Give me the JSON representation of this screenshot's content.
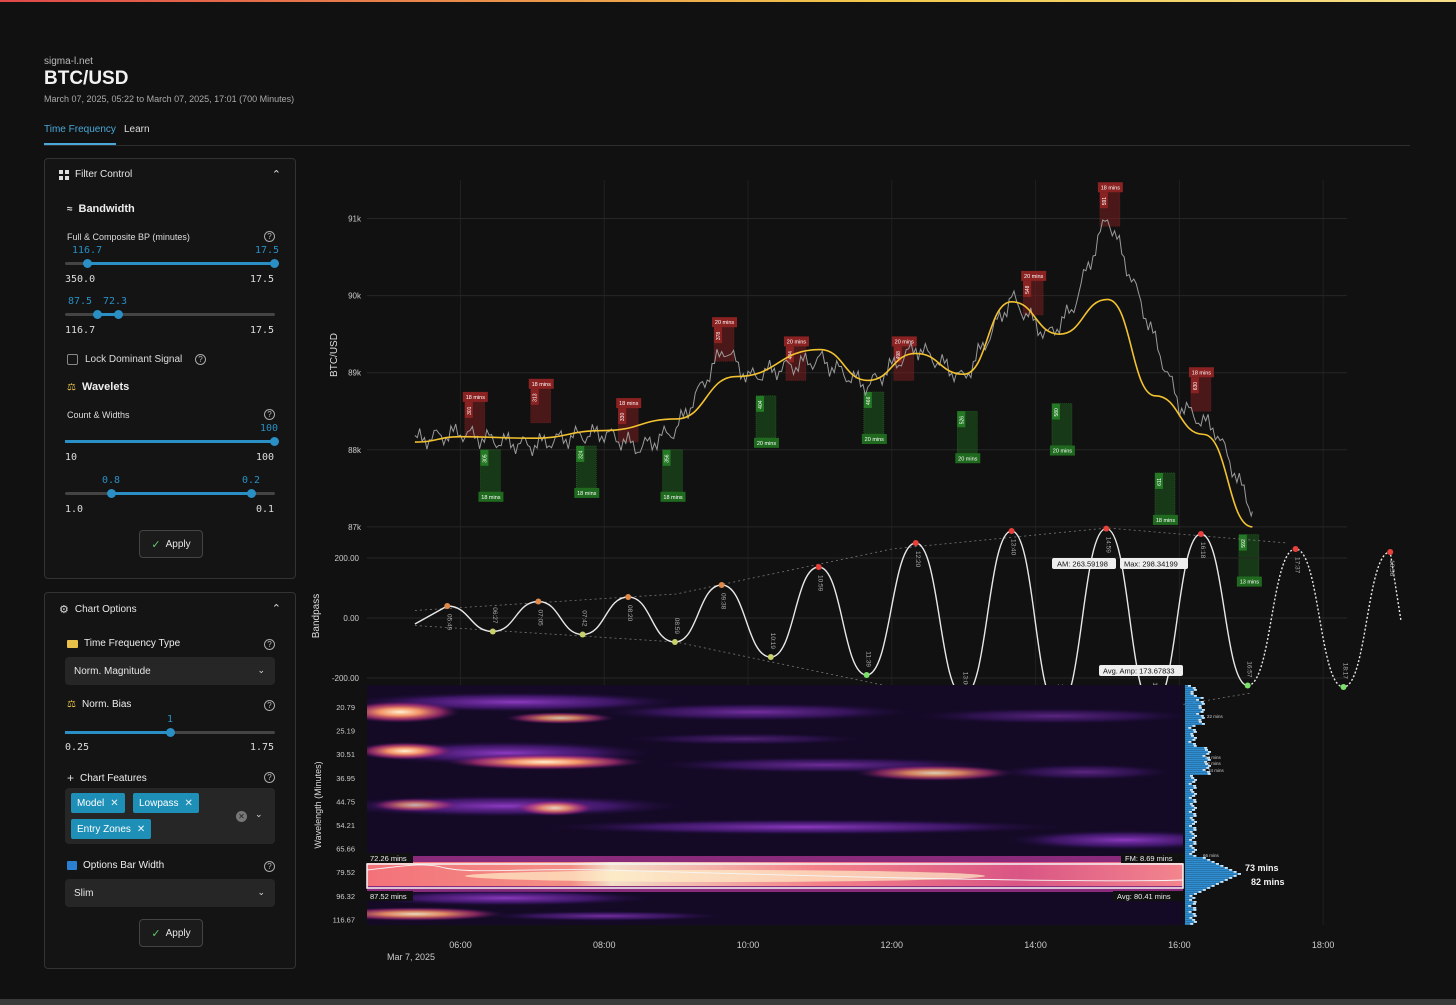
{
  "header": {
    "site": "sigma-l.net",
    "title": "BTC/USD",
    "subtitle": "March 07, 2025, 05:22 to March 07, 2025, 17:01 (700 Minutes)"
  },
  "tabs": [
    {
      "label": "Time Frequency",
      "active": true
    },
    {
      "label": "Learn",
      "active": false
    }
  ],
  "filter_control": {
    "title": "Filter Control",
    "bandwidth": {
      "title": "Bandwidth",
      "label": "Full & Composite BP (minutes)",
      "slider1": {
        "low_label": "116.7",
        "high_label": "17.5",
        "min": "350.0",
        "max": "17.5",
        "low_frac": 0.105,
        "high_frac": 1.0
      },
      "slider2": {
        "low_label": "87.5",
        "high_label": "72.3",
        "min": "116.7",
        "max": "17.5",
        "low_frac": 0.155,
        "high_frac": 0.26
      }
    },
    "lock_dominant": "Lock Dominant Signal",
    "wavelets": {
      "title": "Wavelets",
      "label": "Count & Widths",
      "slider1": {
        "value_label": "100",
        "min": "10",
        "max": "100",
        "frac": 1.0
      },
      "slider2": {
        "low_label": "0.8",
        "high_label": "0.2",
        "min": "1.0",
        "max": "0.1",
        "low_frac": 0.22,
        "high_frac": 0.89
      }
    },
    "apply": "Apply"
  },
  "chart_options": {
    "title": "Chart Options",
    "tf_type_label": "Time Frequency Type",
    "tf_type_value": "Norm. Magnitude",
    "norm_bias_label": "Norm. Bias",
    "norm_bias": {
      "value_label": "1",
      "min": "0.25",
      "max": "1.75",
      "frac": 0.5
    },
    "features_label": "Chart Features",
    "features": [
      "Model",
      "Lowpass",
      "Entry Zones"
    ],
    "bar_width_label": "Options Bar Width",
    "bar_width_value": "Slim",
    "apply": "Apply"
  },
  "chart": {
    "price_axis_label": "BTC/USD",
    "price_ticks": [
      "91k",
      "90k",
      "89k",
      "88k",
      "87k"
    ],
    "bandpass_axis_label": "Bandpass",
    "bandpass_ticks": [
      "200.00",
      "0.00",
      "-200.00"
    ],
    "wavelength_axis_label": "Wavelength (Minutes)",
    "wavelength_ticks": [
      "20.79",
      "25.19",
      "30.51",
      "36.95",
      "44.75",
      "54.21",
      "65.66",
      "79.52",
      "96.32",
      "116.67"
    ],
    "x_ticks": [
      "06:00",
      "08:00",
      "10:00",
      "12:00",
      "14:00",
      "16:00",
      "18:00"
    ],
    "x_date": "Mar 7, 2025",
    "am_label": "AM: 263.59198",
    "max_label": "Max: 298.34199",
    "avg_amp_label": "Avg. Amp: 173.67833",
    "band_top_label": "72.26 mins",
    "band_bottom_label": "87.52 mins",
    "fm_label": "FM: 8.69 mins",
    "avg_label": "Avg: 80.41 mins",
    "spectrum_labels": [
      "22 mins",
      "34 mins",
      "32 mins",
      "34 mins",
      "66 mins"
    ],
    "spectrum_big": [
      "73 mins",
      "82 mins"
    ],
    "zones_red": [
      {
        "n": "301",
        "d": "18 mins"
      },
      {
        "n": "313",
        "d": "18 mins"
      },
      {
        "n": "330",
        "d": "18 mins"
      },
      {
        "n": "378",
        "d": "20 mins"
      },
      {
        "n": "434",
        "d": "20 mins"
      },
      {
        "n": "498",
        "d": "20 mins"
      },
      {
        "n": "548",
        "d": "20 mins"
      },
      {
        "n": "591",
        "d": "18 mins"
      },
      {
        "n": "630",
        "d": "18 mins"
      }
    ],
    "zones_green": [
      {
        "n": "305",
        "d": "18 mins"
      },
      {
        "n": "324",
        "d": "18 mins"
      },
      {
        "n": "356",
        "d": "18 mins"
      },
      {
        "n": "404",
        "d": "20 mins"
      },
      {
        "n": "466",
        "d": "20 mins"
      },
      {
        "n": "526",
        "d": "20 mins"
      },
      {
        "n": "580",
        "d": "20 mins"
      },
      {
        "n": "611",
        "d": "18 mins"
      },
      {
        "n": "592",
        "d": "13 mins"
      }
    ],
    "cycle_labels": [
      "05:49",
      "06:27",
      "07:05",
      "07:42",
      "08:20",
      "08:59",
      "09:38",
      "10:19",
      "10:59",
      "11:39",
      "12:20",
      "13:00",
      "13:40",
      "14:19",
      "14:59",
      "15:38",
      "16:18",
      "16:57",
      "17:37",
      "18:17",
      "18:56"
    ],
    "colors": {
      "lowpass": "#f2c230",
      "price": "#9a9a9a",
      "zone_red": "#7a1e1e",
      "zone_green": "#1f5a1f",
      "accent": "#2a8fc4",
      "peak_dot": "#e8413c",
      "trough_dot": "#7be06a"
    }
  },
  "chart_data": [
    {
      "type": "line",
      "title": "",
      "xlabel": "",
      "ylabel": "BTC/USD",
      "x": [
        "05:22",
        "06:00",
        "07:00",
        "08:00",
        "08:30",
        "09:00",
        "09:40",
        "10:00",
        "11:00",
        "11:40",
        "12:20",
        "13:00",
        "13:40",
        "14:10",
        "14:30",
        "15:00",
        "15:30",
        "16:00",
        "16:30",
        "17:01"
      ],
      "series": [
        {
          "name": "",
          "values": [
            88100,
            88250,
            88050,
            88200,
            88050,
            88300,
            89300,
            88900,
            89200,
            88850,
            89300,
            88900,
            90000,
            89500,
            89800,
            91000,
            89800,
            88600,
            88300,
            87200
          ]
        }
      ],
      "ylim": [
        86700,
        91500
      ]
    },
    {
      "type": "line",
      "ylabel": "Bandpass",
      "x": [
        "05:49",
        "06:27",
        "07:05",
        "07:42",
        "08:20",
        "08:59",
        "09:38",
        "10:19",
        "10:59",
        "11:39",
        "12:20",
        "13:00",
        "13:40",
        "14:19",
        "14:59",
        "15:38",
        "16:18",
        "16:57",
        "17:37",
        "18:17",
        "18:56"
      ],
      "series": [
        {
          "name": "",
          "values": [
            40,
            -45,
            55,
            -55,
            70,
            -80,
            110,
            -130,
            170,
            -190,
            250,
            -260,
            290,
            -300,
            298,
            -295,
            280,
            -225,
            230,
            -230,
            220
          ]
        }
      ],
      "ylim": [
        -300,
        300
      ]
    },
    {
      "type": "heatmap",
      "ylabel": "Wavelength (Minutes)",
      "y": [
        20.79,
        25.19,
        30.51,
        36.95,
        44.75,
        54.21,
        65.66,
        79.52,
        96.32,
        116.67
      ]
    }
  ]
}
